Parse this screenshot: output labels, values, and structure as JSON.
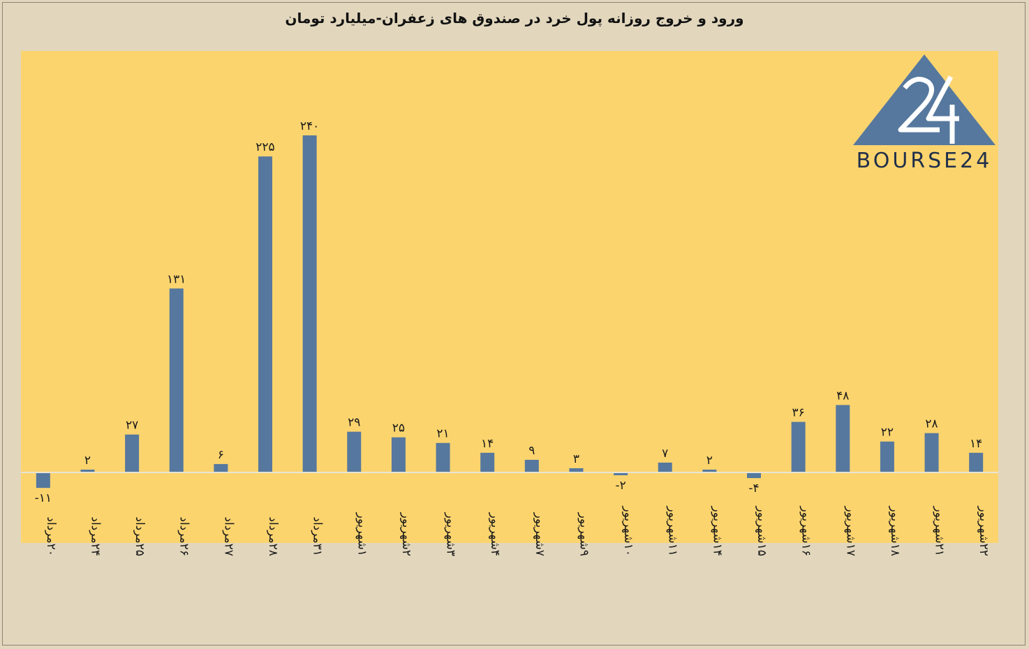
{
  "chart_data": {
    "type": "bar",
    "title": "ورود و خروج روزانه پول خرد در صندوق های زعفران-میلیارد تومان",
    "categories": [
      "۲۰مرداد",
      "۲۴مرداد",
      "۲۵مرداد",
      "۲۶مرداد",
      "۲۷مرداد",
      "۲۸مرداد",
      "۳۱مرداد",
      "۱شهریور",
      "۲شهریور",
      "۳شهریور",
      "۴شهریور",
      "۷شهریور",
      "۹شهریور",
      "۱۰شهریور",
      "۱۱شهریور",
      "۱۴شهریور",
      "۱۵شهریور",
      "۱۶شهریور",
      "۱۷شهریور",
      "۱۸شهریور",
      "۲۱شهریور",
      "۲۲شهریور"
    ],
    "values": [
      -11,
      2,
      27,
      131,
      6,
      225,
      240,
      29,
      25,
      21,
      14,
      9,
      3,
      -2,
      7,
      2,
      -4,
      36,
      48,
      22,
      28,
      14
    ],
    "value_labels": [
      "-۱۱",
      "۲",
      "۲۷",
      "۱۳۱",
      "۶",
      "۲۲۵",
      "۲۴۰",
      "۲۹",
      "۲۵",
      "۲۱",
      "۱۴",
      "۹",
      "۳",
      "-۲",
      "۷",
      "۲",
      "-۴",
      "۳۶",
      "۴۸",
      "۲۲",
      "۲۸",
      "۱۴"
    ],
    "ylim": [
      -50,
      300
    ],
    "grid": false,
    "legend": "none",
    "colors": {
      "bar": "#56789e",
      "plot_background": "#fbd46e",
      "page_background": "#e2d7bd",
      "zero_line": "#e8e4d6",
      "logo": "#56789e"
    }
  },
  "logo": {
    "number": "24",
    "text": "BOURSE24"
  }
}
